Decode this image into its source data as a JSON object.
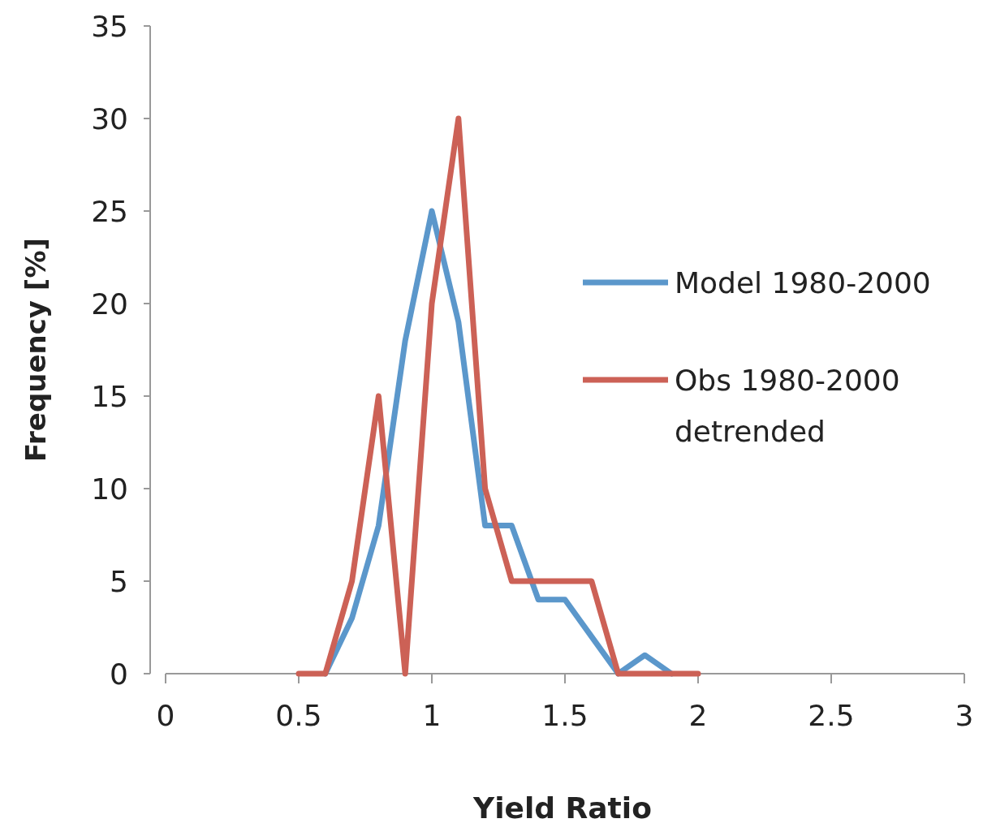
{
  "chart_data": {
    "type": "line",
    "xlabel": "Yield Ratio",
    "ylabel": "Frequency [%]",
    "xlim": [
      0,
      3
    ],
    "xticks": [
      0,
      0.5,
      1,
      1.5,
      2,
      2.5,
      3
    ],
    "ylim": [
      0,
      35
    ],
    "yticks": [
      0,
      5,
      10,
      15,
      20,
      25,
      30,
      35
    ],
    "grid": false,
    "legend": "right",
    "line_style": "solid",
    "series": [
      {
        "name": "Model 1980-2000",
        "color": "#5b97cb",
        "x": [
          0.6,
          0.7,
          0.8,
          0.9,
          1.0,
          1.1,
          1.2,
          1.3,
          1.4,
          1.5,
          1.6,
          1.7,
          1.8,
          1.9
        ],
        "values": [
          0,
          3,
          8,
          18,
          25,
          19,
          8,
          8,
          4,
          4,
          2,
          0,
          1,
          0
        ]
      },
      {
        "name": "Obs 1980-2000 detrended",
        "color": "#cc6156",
        "x": [
          0.5,
          0.6,
          0.7,
          0.8,
          0.9,
          1.0,
          1.1,
          1.2,
          1.3,
          1.4,
          1.5,
          1.6,
          1.7,
          1.8,
          1.9,
          2.0
        ],
        "values": [
          0,
          0,
          5,
          15,
          0,
          20,
          30,
          10,
          5,
          5,
          5,
          5,
          0,
          0,
          0,
          0
        ]
      }
    ]
  }
}
